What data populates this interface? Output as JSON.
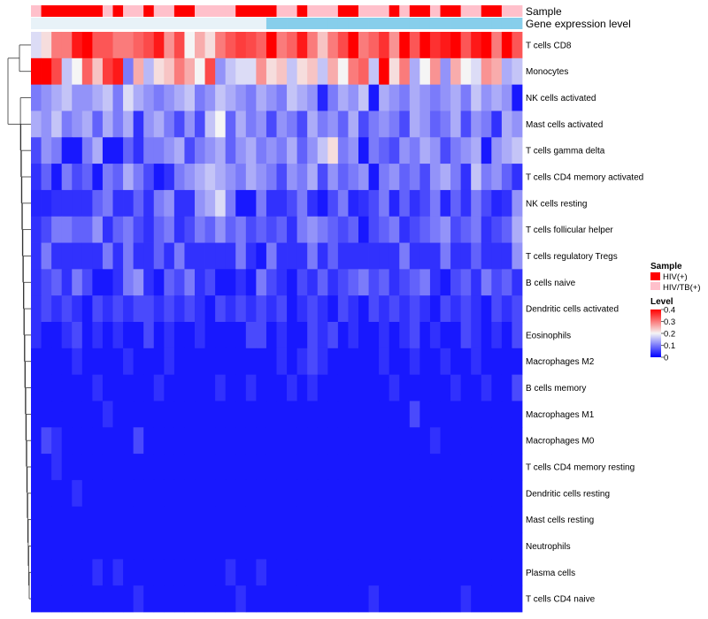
{
  "chart_data": {
    "type": "heatmap",
    "annotation_rows": [
      {
        "label": "Sample",
        "values": [
          "HIV/TB(+)",
          "HIV(+)",
          "HIV(+)",
          "HIV(+)",
          "HIV(+)",
          "HIV(+)",
          "HIV(+)",
          "HIV/TB(+)",
          "HIV(+)",
          "HIV/TB(+)",
          "HIV/TB(+)",
          "HIV(+)",
          "HIV/TB(+)",
          "HIV/TB(+)",
          "HIV(+)",
          "HIV(+)",
          "HIV/TB(+)",
          "HIV/TB(+)",
          "HIV/TB(+)",
          "HIV/TB(+)",
          "HIV(+)",
          "HIV(+)",
          "HIV(+)",
          "HIV(+)",
          "HIV/TB(+)",
          "HIV/TB(+)",
          "HIV(+)",
          "HIV/TB(+)",
          "HIV/TB(+)",
          "HIV/TB(+)",
          "HIV(+)",
          "HIV(+)",
          "HIV/TB(+)",
          "HIV/TB(+)",
          "HIV/TB(+)",
          "HIV(+)",
          "HIV/TB(+)",
          "HIV(+)",
          "HIV(+)",
          "HIV/TB(+)",
          "HIV(+)",
          "HIV(+)",
          "HIV/TB(+)",
          "HIV/TB(+)",
          "HIV(+)",
          "HIV(+)",
          "HIV/TB(+)",
          "HIV/TB(+)"
        ]
      },
      {
        "label": "Gene expression level",
        "values": [
          "low",
          "low",
          "low",
          "low",
          "low",
          "low",
          "low",
          "low",
          "low",
          "low",
          "low",
          "low",
          "low",
          "low",
          "low",
          "low",
          "low",
          "low",
          "low",
          "low",
          "low",
          "low",
          "low",
          "high",
          "high",
          "high",
          "high",
          "high",
          "high",
          "high",
          "high",
          "high",
          "high",
          "high",
          "high",
          "high",
          "high",
          "high",
          "high",
          "high",
          "high",
          "high",
          "high",
          "high",
          "high",
          "high",
          "high",
          "high"
        ]
      }
    ],
    "rows": [
      "T cells CD8",
      "Monocytes",
      "NK cells activated",
      "Mast cells activated",
      "T cells gamma delta",
      "T cells CD4 memory activated",
      "NK cells resting",
      "T cells follicular helper",
      "T cells regulatory  Tregs",
      "B cells naive",
      "Dendritic cells activated",
      "Eosinophils",
      "Macrophages M2",
      "B cells memory",
      "Macrophages M1",
      "Macrophages M0",
      "T cells CD4 memory resting",
      "Dendritic cells resting",
      "Mast cells resting",
      "Neutrophils",
      "Plasma cells",
      "T cells CD4 naive"
    ],
    "values": [
      [
        0.18,
        0.22,
        0.3,
        0.3,
        0.38,
        0.4,
        0.33,
        0.33,
        0.3,
        0.3,
        0.32,
        0.34,
        0.38,
        0.28,
        0.34,
        0.2,
        0.26,
        0.22,
        0.3,
        0.33,
        0.35,
        0.34,
        0.32,
        0.4,
        0.3,
        0.32,
        0.38,
        0.3,
        0.24,
        0.3,
        0.34,
        0.4,
        0.3,
        0.32,
        0.36,
        0.28,
        0.4,
        0.33,
        0.4,
        0.36,
        0.38,
        0.4,
        0.33,
        0.38,
        0.4,
        0.3,
        0.4,
        0.33
      ],
      [
        0.4,
        0.4,
        0.34,
        0.16,
        0.2,
        0.32,
        0.24,
        0.35,
        0.38,
        0.1,
        0.26,
        0.15,
        0.22,
        0.24,
        0.3,
        0.26,
        0.2,
        0.34,
        0.12,
        0.16,
        0.18,
        0.18,
        0.28,
        0.22,
        0.24,
        0.16,
        0.22,
        0.24,
        0.16,
        0.26,
        0.2,
        0.3,
        0.32,
        0.16,
        0.4,
        0.22,
        0.3,
        0.14,
        0.2,
        0.28,
        0.12,
        0.26,
        0.2,
        0.18,
        0.28,
        0.26,
        0.14,
        0.16
      ],
      [
        0.1,
        0.12,
        0.14,
        0.16,
        0.12,
        0.12,
        0.14,
        0.16,
        0.1,
        0.18,
        0.14,
        0.12,
        0.1,
        0.12,
        0.14,
        0.16,
        0.1,
        0.12,
        0.16,
        0.14,
        0.12,
        0.1,
        0.14,
        0.12,
        0.1,
        0.16,
        0.14,
        0.12,
        0.03,
        0.1,
        0.14,
        0.12,
        0.16,
        0.02,
        0.14,
        0.12,
        0.1,
        0.14,
        0.12,
        0.1,
        0.12,
        0.14,
        0.1,
        0.16,
        0.12,
        0.14,
        0.12,
        0.02
      ],
      [
        0.14,
        0.12,
        0.16,
        0.1,
        0.12,
        0.14,
        0.08,
        0.14,
        0.1,
        0.14,
        0.04,
        0.12,
        0.14,
        0.1,
        0.06,
        0.12,
        0.06,
        0.16,
        0.2,
        0.08,
        0.14,
        0.1,
        0.12,
        0.06,
        0.12,
        0.1,
        0.06,
        0.14,
        0.1,
        0.12,
        0.08,
        0.14,
        0.06,
        0.1,
        0.12,
        0.1,
        0.06,
        0.14,
        0.12,
        0.08,
        0.1,
        0.14,
        0.06,
        0.12,
        0.1,
        0.04,
        0.14,
        0.12
      ],
      [
        0.06,
        0.12,
        0.1,
        0.02,
        0.02,
        0.1,
        0.14,
        0.02,
        0.02,
        0.08,
        0.04,
        0.1,
        0.1,
        0.12,
        0.14,
        0.06,
        0.1,
        0.12,
        0.14,
        0.08,
        0.12,
        0.14,
        0.1,
        0.12,
        0.1,
        0.14,
        0.08,
        0.12,
        0.16,
        0.22,
        0.1,
        0.12,
        0.02,
        0.1,
        0.08,
        0.06,
        0.12,
        0.1,
        0.14,
        0.12,
        0.06,
        0.1,
        0.12,
        0.14,
        0.02,
        0.12,
        0.14,
        0.16
      ],
      [
        0.04,
        0.08,
        0.02,
        0.1,
        0.06,
        0.08,
        0.02,
        0.1,
        0.08,
        0.14,
        0.1,
        0.06,
        0.02,
        0.04,
        0.1,
        0.12,
        0.14,
        0.16,
        0.14,
        0.12,
        0.1,
        0.14,
        0.12,
        0.1,
        0.06,
        0.12,
        0.1,
        0.14,
        0.06,
        0.12,
        0.08,
        0.1,
        0.12,
        0.02,
        0.1,
        0.12,
        0.08,
        0.1,
        0.06,
        0.12,
        0.14,
        0.1,
        0.04,
        0.16,
        0.1,
        0.12,
        0.08,
        0.04
      ],
      [
        0.03,
        0.03,
        0.04,
        0.04,
        0.04,
        0.04,
        0.08,
        0.1,
        0.04,
        0.04,
        0.08,
        0.04,
        0.1,
        0.12,
        0.04,
        0.04,
        0.12,
        0.14,
        0.18,
        0.1,
        0.02,
        0.02,
        0.1,
        0.04,
        0.04,
        0.06,
        0.1,
        0.04,
        0.02,
        0.06,
        0.1,
        0.03,
        0.04,
        0.06,
        0.1,
        0.03,
        0.08,
        0.04,
        0.06,
        0.1,
        0.03,
        0.08,
        0.04,
        0.1,
        0.06,
        0.03,
        0.04,
        0.12
      ],
      [
        0.04,
        0.06,
        0.1,
        0.1,
        0.08,
        0.08,
        0.12,
        0.04,
        0.08,
        0.1,
        0.06,
        0.04,
        0.08,
        0.1,
        0.04,
        0.06,
        0.1,
        0.08,
        0.12,
        0.08,
        0.1,
        0.06,
        0.08,
        0.06,
        0.08,
        0.04,
        0.1,
        0.12,
        0.1,
        0.08,
        0.06,
        0.08,
        0.02,
        0.06,
        0.08,
        0.1,
        0.04,
        0.06,
        0.08,
        0.1,
        0.12,
        0.06,
        0.08,
        0.1,
        0.04,
        0.06,
        0.08,
        0.14
      ],
      [
        0.04,
        0.1,
        0.04,
        0.04,
        0.04,
        0.04,
        0.04,
        0.1,
        0.04,
        0.1,
        0.04,
        0.04,
        0.08,
        0.04,
        0.1,
        0.04,
        0.04,
        0.04,
        0.04,
        0.04,
        0.1,
        0.04,
        0.02,
        0.1,
        0.04,
        0.04,
        0.04,
        0.1,
        0.04,
        0.08,
        0.04,
        0.04,
        0.04,
        0.04,
        0.04,
        0.04,
        0.1,
        0.04,
        0.04,
        0.04,
        0.1,
        0.04,
        0.04,
        0.08,
        0.04,
        0.04,
        0.04,
        0.12
      ],
      [
        0.04,
        0.06,
        0.08,
        0.04,
        0.1,
        0.06,
        0.02,
        0.02,
        0.04,
        0.1,
        0.12,
        0.04,
        0.02,
        0.08,
        0.06,
        0.1,
        0.04,
        0.06,
        0.02,
        0.02,
        0.04,
        0.02,
        0.1,
        0.06,
        0.04,
        0.02,
        0.06,
        0.04,
        0.08,
        0.04,
        0.06,
        0.08,
        0.1,
        0.06,
        0.08,
        0.04,
        0.06,
        0.08,
        0.1,
        0.04,
        0.02,
        0.06,
        0.08,
        0.04,
        0.1,
        0.06,
        0.08,
        0.04
      ],
      [
        0.04,
        0.06,
        0.04,
        0.06,
        0.04,
        0.02,
        0.06,
        0.04,
        0.06,
        0.04,
        0.06,
        0.06,
        0.04,
        0.06,
        0.04,
        0.06,
        0.04,
        0.02,
        0.06,
        0.04,
        0.06,
        0.04,
        0.06,
        0.04,
        0.06,
        0.02,
        0.04,
        0.06,
        0.04,
        0.02,
        0.06,
        0.04,
        0.02,
        0.06,
        0.04,
        0.06,
        0.04,
        0.06,
        0.04,
        0.02,
        0.06,
        0.04,
        0.06,
        0.04,
        0.02,
        0.06,
        0.04,
        0.06
      ],
      [
        0.04,
        0.02,
        0.02,
        0.04,
        0.06,
        0.02,
        0.04,
        0.02,
        0.04,
        0.02,
        0.02,
        0.06,
        0.02,
        0.04,
        0.02,
        0.02,
        0.04,
        0.02,
        0.02,
        0.02,
        0.02,
        0.06,
        0.06,
        0.02,
        0.04,
        0.02,
        0.02,
        0.06,
        0.04,
        0.06,
        0.02,
        0.04,
        0.02,
        0.02,
        0.04,
        0.02,
        0.04,
        0.06,
        0.02,
        0.04,
        0.02,
        0.02,
        0.06,
        0.04,
        0.02,
        0.04,
        0.02,
        0.06
      ],
      [
        0.02,
        0.02,
        0.02,
        0.02,
        0.04,
        0.02,
        0.02,
        0.02,
        0.02,
        0.04,
        0.02,
        0.02,
        0.02,
        0.04,
        0.02,
        0.02,
        0.02,
        0.02,
        0.02,
        0.02,
        0.02,
        0.02,
        0.02,
        0.02,
        0.04,
        0.02,
        0.04,
        0.06,
        0.04,
        0.02,
        0.02,
        0.02,
        0.02,
        0.02,
        0.04,
        0.02,
        0.02,
        0.04,
        0.02,
        0.02,
        0.04,
        0.02,
        0.02,
        0.04,
        0.02,
        0.02,
        0.02,
        0.02
      ],
      [
        0.02,
        0.02,
        0.02,
        0.02,
        0.02,
        0.02,
        0.04,
        0.02,
        0.02,
        0.02,
        0.02,
        0.02,
        0.04,
        0.02,
        0.02,
        0.02,
        0.02,
        0.02,
        0.04,
        0.02,
        0.02,
        0.04,
        0.02,
        0.02,
        0.02,
        0.04,
        0.02,
        0.04,
        0.02,
        0.02,
        0.02,
        0.02,
        0.02,
        0.02,
        0.02,
        0.04,
        0.02,
        0.02,
        0.02,
        0.02,
        0.02,
        0.04,
        0.02,
        0.02,
        0.04,
        0.02,
        0.02,
        0.06
      ],
      [
        0.02,
        0.02,
        0.02,
        0.02,
        0.02,
        0.02,
        0.02,
        0.04,
        0.02,
        0.02,
        0.02,
        0.02,
        0.02,
        0.02,
        0.02,
        0.02,
        0.02,
        0.02,
        0.02,
        0.02,
        0.02,
        0.02,
        0.02,
        0.02,
        0.02,
        0.02,
        0.02,
        0.02,
        0.02,
        0.02,
        0.02,
        0.02,
        0.02,
        0.02,
        0.02,
        0.02,
        0.02,
        0.06,
        0.02,
        0.02,
        0.02,
        0.02,
        0.02,
        0.02,
        0.02,
        0.02,
        0.02,
        0.02
      ],
      [
        0.02,
        0.06,
        0.04,
        0.02,
        0.02,
        0.02,
        0.02,
        0.02,
        0.02,
        0.02,
        0.06,
        0.02,
        0.02,
        0.02,
        0.02,
        0.02,
        0.02,
        0.02,
        0.02,
        0.02,
        0.02,
        0.02,
        0.02,
        0.02,
        0.02,
        0.02,
        0.02,
        0.02,
        0.02,
        0.02,
        0.02,
        0.02,
        0.02,
        0.02,
        0.02,
        0.02,
        0.02,
        0.02,
        0.02,
        0.04,
        0.02,
        0.02,
        0.02,
        0.02,
        0.02,
        0.02,
        0.02,
        0.02
      ],
      [
        0.02,
        0.02,
        0.04,
        0.02,
        0.02,
        0.02,
        0.02,
        0.02,
        0.02,
        0.02,
        0.02,
        0.02,
        0.02,
        0.02,
        0.02,
        0.02,
        0.02,
        0.02,
        0.02,
        0.02,
        0.02,
        0.02,
        0.02,
        0.02,
        0.02,
        0.02,
        0.02,
        0.02,
        0.02,
        0.02,
        0.02,
        0.02,
        0.02,
        0.02,
        0.02,
        0.02,
        0.02,
        0.02,
        0.02,
        0.02,
        0.02,
        0.02,
        0.02,
        0.02,
        0.02,
        0.02,
        0.02,
        0.02
      ],
      [
        0.02,
        0.02,
        0.02,
        0.02,
        0.04,
        0.02,
        0.02,
        0.02,
        0.02,
        0.02,
        0.02,
        0.02,
        0.02,
        0.02,
        0.02,
        0.02,
        0.02,
        0.02,
        0.02,
        0.02,
        0.02,
        0.02,
        0.02,
        0.02,
        0.02,
        0.02,
        0.02,
        0.02,
        0.02,
        0.02,
        0.02,
        0.02,
        0.02,
        0.02,
        0.02,
        0.02,
        0.02,
        0.02,
        0.02,
        0.02,
        0.02,
        0.02,
        0.02,
        0.02,
        0.02,
        0.02,
        0.02,
        0.02
      ],
      [
        0.02,
        0.02,
        0.02,
        0.02,
        0.02,
        0.02,
        0.02,
        0.02,
        0.02,
        0.02,
        0.02,
        0.02,
        0.02,
        0.02,
        0.02,
        0.02,
        0.02,
        0.02,
        0.02,
        0.02,
        0.02,
        0.02,
        0.02,
        0.02,
        0.02,
        0.02,
        0.02,
        0.02,
        0.02,
        0.02,
        0.02,
        0.02,
        0.02,
        0.02,
        0.02,
        0.02,
        0.02,
        0.02,
        0.02,
        0.02,
        0.02,
        0.02,
        0.02,
        0.02,
        0.02,
        0.02,
        0.02,
        0.02
      ],
      [
        0.02,
        0.02,
        0.02,
        0.02,
        0.02,
        0.02,
        0.02,
        0.02,
        0.02,
        0.02,
        0.02,
        0.02,
        0.02,
        0.02,
        0.02,
        0.02,
        0.02,
        0.02,
        0.02,
        0.02,
        0.02,
        0.02,
        0.02,
        0.02,
        0.02,
        0.02,
        0.02,
        0.02,
        0.02,
        0.02,
        0.02,
        0.02,
        0.02,
        0.02,
        0.02,
        0.02,
        0.02,
        0.02,
        0.02,
        0.02,
        0.02,
        0.02,
        0.02,
        0.02,
        0.02,
        0.02,
        0.02,
        0.02
      ],
      [
        0.02,
        0.02,
        0.02,
        0.02,
        0.02,
        0.02,
        0.04,
        0.02,
        0.04,
        0.02,
        0.02,
        0.02,
        0.02,
        0.02,
        0.02,
        0.02,
        0.02,
        0.02,
        0.02,
        0.04,
        0.02,
        0.02,
        0.04,
        0.02,
        0.02,
        0.02,
        0.02,
        0.02,
        0.02,
        0.02,
        0.02,
        0.02,
        0.02,
        0.02,
        0.02,
        0.02,
        0.02,
        0.02,
        0.02,
        0.02,
        0.02,
        0.02,
        0.02,
        0.02,
        0.02,
        0.02,
        0.02,
        0.02
      ],
      [
        0.02,
        0.02,
        0.02,
        0.02,
        0.02,
        0.02,
        0.02,
        0.02,
        0.02,
        0.02,
        0.04,
        0.02,
        0.02,
        0.02,
        0.02,
        0.02,
        0.02,
        0.02,
        0.02,
        0.02,
        0.04,
        0.02,
        0.02,
        0.02,
        0.02,
        0.02,
        0.02,
        0.02,
        0.02,
        0.02,
        0.02,
        0.02,
        0.02,
        0.04,
        0.02,
        0.02,
        0.02,
        0.02,
        0.02,
        0.02,
        0.02,
        0.02,
        0.04,
        0.02,
        0.02,
        0.02,
        0.02,
        0.02
      ]
    ],
    "color_scale": {
      "min": 0,
      "max": 0.4,
      "colors": [
        "#0000FF",
        "#F5F5F5",
        "#FF0000"
      ]
    },
    "legend": {
      "sample_title": "Sample",
      "sample_items": [
        {
          "label": "HIV(+)",
          "color": "#FF0000"
        },
        {
          "label": "HIV/TB(+)",
          "color": "#FFC0CB"
        }
      ],
      "level_title": "Level",
      "level_ticks": [
        "0.4",
        "0.3",
        "0.2",
        "0.1",
        "0"
      ],
      "level_tick_values": [
        0.4,
        0.3,
        0.2,
        0.1,
        0
      ]
    },
    "annotation_colors": {
      "low": "#E8F2F8",
      "high": "#87CEEB"
    },
    "row_dendrogram": true
  }
}
